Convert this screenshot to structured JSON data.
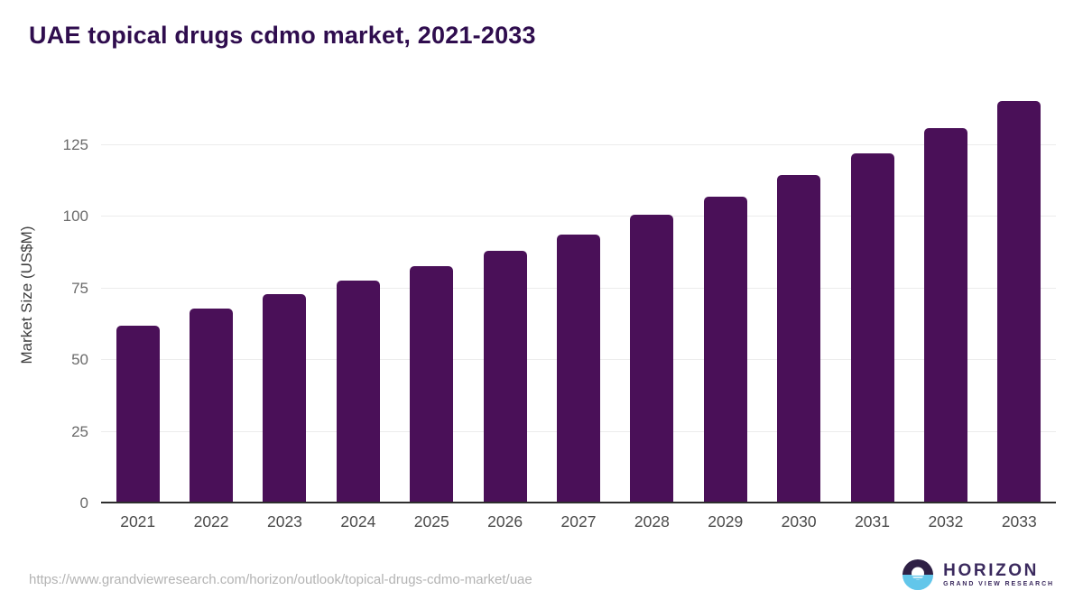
{
  "title": "UAE topical drugs cdmo market, 2021-2033",
  "chart_data": {
    "type": "bar",
    "title": "UAE topical drugs cdmo market, 2021-2033",
    "categories": [
      "2021",
      "2022",
      "2023",
      "2024",
      "2025",
      "2026",
      "2027",
      "2028",
      "2029",
      "2030",
      "2031",
      "2032",
      "2033"
    ],
    "values": [
      62.1,
      68.0,
      73.0,
      77.7,
      82.8,
      88.0,
      93.8,
      100.5,
      107.1,
      114.5,
      122.2,
      131.0,
      140.2
    ],
    "xlabel": "",
    "ylabel": "Market Size (US$M)",
    "ylim": [
      0,
      145
    ],
    "yticks": [
      0,
      25,
      50,
      75,
      100,
      125
    ],
    "grid": "horizontal-light",
    "legend": "none",
    "bar_color": "#4a1058"
  },
  "colors": {
    "title": "#2f0d4e",
    "bar": "#4a1058",
    "gridline": "#ececec",
    "axis_line": "#2e2e2e",
    "tick_text": "#6a6a6a",
    "logo_purple": "#3b2a5e",
    "logo_dark_half": "#2e2045",
    "logo_blue_half": "#62c6ea"
  },
  "footer": {
    "source_url": "https://www.grandviewresearch.com/horizon/outlook/topical-drugs-cdmo-market/uae",
    "logo_title": "HORIZON",
    "logo_subtitle": "GRAND VIEW RESEARCH"
  }
}
